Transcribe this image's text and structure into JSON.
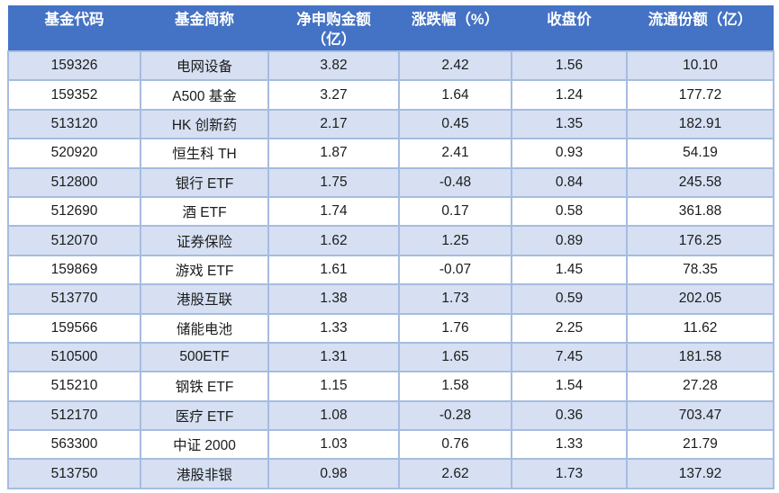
{
  "table": {
    "headers": [
      "基金代码",
      "基金简称",
      "净申购金额\n（亿）",
      "涨跌幅（%）",
      "收盘价",
      "流通份额（亿）"
    ],
    "column_keys": [
      "fund-code",
      "fund-name",
      "net-subscription",
      "change-pct",
      "close-price",
      "float-shares"
    ],
    "rows": [
      [
        "159326",
        "电网设备",
        "3.82",
        "2.42",
        "1.56",
        "10.10"
      ],
      [
        "159352",
        "A500 基金",
        "3.27",
        "1.64",
        "1.24",
        "177.72"
      ],
      [
        "513120",
        "HK 创新药",
        "2.17",
        "0.45",
        "1.35",
        "182.91"
      ],
      [
        "520920",
        "恒生科 TH",
        "1.87",
        "2.41",
        "0.93",
        "54.19"
      ],
      [
        "512800",
        "银行 ETF",
        "1.75",
        "-0.48",
        "0.84",
        "245.58"
      ],
      [
        "512690",
        "酒 ETF",
        "1.74",
        "0.17",
        "0.58",
        "361.88"
      ],
      [
        "512070",
        "证券保险",
        "1.62",
        "1.25",
        "0.89",
        "176.25"
      ],
      [
        "159869",
        "游戏 ETF",
        "1.61",
        "-0.07",
        "1.45",
        "78.35"
      ],
      [
        "513770",
        "港股互联",
        "1.38",
        "1.73",
        "0.59",
        "202.05"
      ],
      [
        "159566",
        "储能电池",
        "1.33",
        "1.76",
        "2.25",
        "11.62"
      ],
      [
        "510500",
        "500ETF",
        "1.31",
        "1.65",
        "7.45",
        "181.58"
      ],
      [
        "515210",
        "钢铁 ETF",
        "1.15",
        "1.58",
        "1.54",
        "27.28"
      ],
      [
        "512170",
        "医疗 ETF",
        "1.08",
        "-0.28",
        "0.36",
        "703.47"
      ],
      [
        "563300",
        "中证 2000",
        "1.03",
        "0.76",
        "1.33",
        "21.79"
      ],
      [
        "513750",
        "港股非银",
        "0.98",
        "2.62",
        "1.73",
        "137.92"
      ]
    ]
  },
  "colors": {
    "header_bg": "#4472C4",
    "header_text": "#FFFFFF",
    "band_row_bg": "#D6E0F2",
    "white_row_bg": "#FFFFFF",
    "border": "#A6BCE0",
    "cell_text": "#1B1B1B"
  }
}
